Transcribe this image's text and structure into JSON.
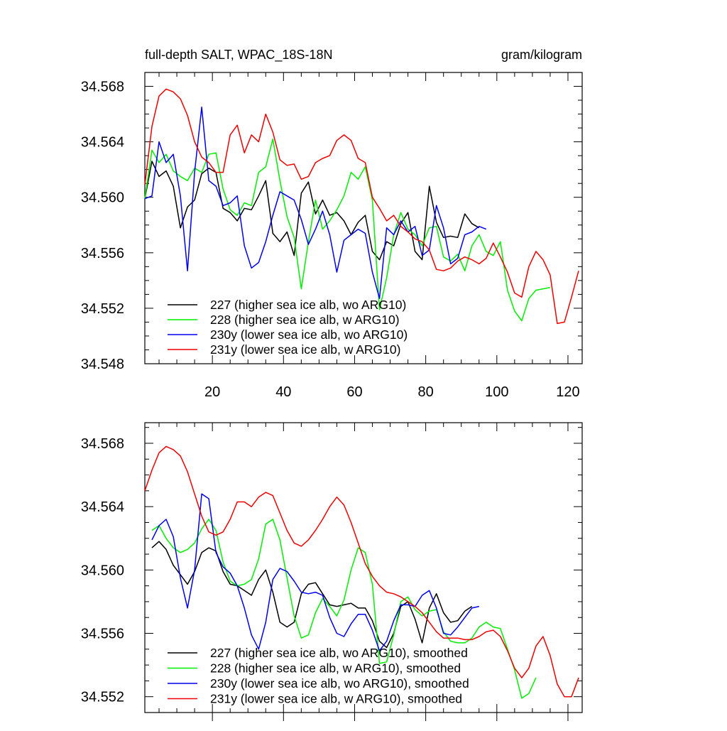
{
  "chart_data": [
    {
      "type": "line",
      "title": "full-depth SALT, WPAC_18S-18N",
      "units": "gram/kilogram",
      "xlim": [
        1,
        124
      ],
      "ylim": [
        34.548,
        34.569
      ],
      "x_ticks": [
        20,
        40,
        60,
        80,
        100,
        120
      ],
      "x_tick_labels": [
        "20",
        "40",
        "60",
        "80",
        "100",
        "120"
      ],
      "y_ticks": [
        34.548,
        34.552,
        34.556,
        34.56,
        34.564,
        34.568
      ],
      "y_tick_labels": [
        "34.548",
        "34.552",
        "34.556",
        "34.560",
        "34.564",
        "34.568"
      ],
      "legend_position": "lower-left",
      "series": [
        {
          "name": "227 (higher sea ice alb, wo ARG10)",
          "color": "#000000",
          "x": [
            1,
            3,
            5,
            7,
            9,
            11,
            13,
            15,
            17,
            19,
            21,
            23,
            25,
            27,
            29,
            31,
            33,
            35,
            37,
            39,
            41,
            43,
            45,
            47,
            49,
            51,
            53,
            55,
            57,
            59,
            61,
            63,
            65,
            67,
            69,
            71,
            73,
            75,
            77,
            79,
            81,
            83,
            85,
            87,
            89,
            91,
            93,
            95
          ],
          "y": [
            34.5599,
            34.5626,
            34.5615,
            34.5619,
            34.5608,
            34.5578,
            34.5593,
            34.5598,
            34.5617,
            34.5621,
            34.5618,
            34.5592,
            34.5589,
            34.5583,
            34.5592,
            34.5591,
            34.5601,
            34.5612,
            34.5574,
            34.5568,
            34.5575,
            34.5558,
            34.5603,
            34.5611,
            34.5588,
            34.5598,
            34.5587,
            34.5589,
            34.5583,
            34.5573,
            34.5582,
            34.5587,
            34.5561,
            34.5555,
            34.5568,
            34.5565,
            34.5581,
            34.5589,
            34.5561,
            34.5555,
            34.5608,
            34.5582,
            34.5571,
            34.5572,
            34.5571,
            34.5588,
            34.5581,
            34.5578
          ]
        },
        {
          "name": "228 (higher sea ice alb, w ARG10)",
          "color": "#00ee00",
          "x": [
            1,
            3,
            5,
            7,
            9,
            11,
            13,
            15,
            17,
            19,
            21,
            23,
            25,
            27,
            29,
            31,
            33,
            35,
            37,
            39,
            41,
            43,
            45,
            47,
            49,
            51,
            53,
            55,
            57,
            59,
            61,
            63,
            65,
            67,
            69,
            71,
            73,
            75,
            77,
            79,
            81,
            83,
            85,
            87,
            89,
            91,
            93,
            95,
            97,
            99,
            101,
            103,
            105,
            107,
            109,
            111,
            113,
            115
          ],
          "y": [
            34.5599,
            34.5634,
            34.5625,
            34.5631,
            34.5619,
            34.5615,
            34.5612,
            34.5621,
            34.5618,
            34.5631,
            34.5632,
            34.5606,
            34.5591,
            34.5587,
            34.5596,
            34.5594,
            34.5618,
            34.5622,
            34.5642,
            34.5612,
            34.5586,
            34.5571,
            34.5534,
            34.5568,
            34.5598,
            34.5577,
            34.5583,
            34.5591,
            34.5601,
            34.5618,
            34.5613,
            34.5622,
            34.5598,
            34.5519,
            34.5542,
            34.5573,
            34.5589,
            34.5577,
            34.5573,
            34.5565,
            34.5578,
            34.5579,
            34.5557,
            34.5554,
            34.5559,
            34.5547,
            34.5565,
            34.5573,
            34.5561,
            34.5558,
            34.5568,
            34.5533,
            34.5518,
            34.5511,
            34.5527,
            34.5533,
            34.5534,
            34.5535
          ]
        },
        {
          "name": "230y (lower sea ice alb, wo ARG10)",
          "color": "#0000ee",
          "x": [
            1,
            3,
            5,
            7,
            9,
            11,
            13,
            15,
            17,
            19,
            21,
            23,
            25,
            27,
            29,
            31,
            33,
            35,
            37,
            39,
            41,
            43,
            45,
            47,
            49,
            51,
            53,
            55,
            57,
            59,
            61,
            63,
            65,
            67,
            69,
            71,
            73,
            75,
            77,
            79,
            81,
            83,
            85,
            87,
            89,
            91,
            93,
            95,
            97
          ],
          "y": [
            34.5599,
            34.5601,
            34.564,
            34.5625,
            34.5631,
            34.5601,
            34.5547,
            34.5618,
            34.5665,
            34.5612,
            34.5608,
            34.5594,
            34.5596,
            34.5601,
            34.5565,
            34.5549,
            34.5553,
            34.5568,
            34.5587,
            34.5604,
            34.5601,
            34.5598,
            34.5584,
            34.5566,
            34.5577,
            34.559,
            34.5573,
            34.5546,
            34.5569,
            34.5573,
            34.5577,
            34.5574,
            34.5546,
            34.5527,
            34.5578,
            34.5573,
            34.5583,
            34.5575,
            34.5579,
            34.5558,
            34.5562,
            34.5594,
            34.5578,
            34.5552,
            34.5556,
            34.5573,
            34.5575,
            34.5579,
            34.5577
          ]
        },
        {
          "name": "231y (lower sea ice alb, w ARG10)",
          "color": "#ee0000",
          "x": [
            1,
            3,
            5,
            7,
            9,
            11,
            13,
            15,
            17,
            19,
            21,
            23,
            25,
            27,
            29,
            31,
            33,
            35,
            37,
            39,
            41,
            43,
            45,
            47,
            49,
            51,
            53,
            55,
            57,
            59,
            61,
            63,
            65,
            67,
            69,
            71,
            73,
            75,
            77,
            79,
            81,
            83,
            85,
            87,
            89,
            91,
            93,
            95,
            97,
            99,
            101,
            103,
            105,
            107,
            109,
            111,
            113,
            115,
            117,
            119,
            121,
            123
          ],
          "y": [
            34.5609,
            34.5651,
            34.5673,
            34.5678,
            34.5676,
            34.5671,
            34.5659,
            34.564,
            34.5629,
            34.5625,
            34.5618,
            34.5618,
            34.5645,
            34.5652,
            34.5632,
            34.5645,
            34.564,
            34.566,
            34.5647,
            34.5627,
            34.5623,
            34.5624,
            34.5613,
            34.5615,
            34.5625,
            34.5628,
            34.563,
            34.5641,
            34.5645,
            34.5641,
            34.5628,
            34.5625,
            34.56,
            34.5592,
            34.5583,
            34.5587,
            34.5579,
            34.5575,
            34.557,
            34.5568,
            34.5562,
            34.5548,
            34.5547,
            34.5549,
            34.5554,
            34.5557,
            34.5555,
            34.5552,
            34.5556,
            34.5567,
            34.5557,
            34.5546,
            34.5531,
            34.5528,
            34.555,
            34.5561,
            34.5555,
            34.5544,
            34.5509,
            34.551,
            34.5528,
            34.5547
          ]
        }
      ]
    },
    {
      "type": "line",
      "title": "",
      "xlim": [
        1,
        124
      ],
      "ylim": [
        34.551,
        34.5693
      ],
      "x_ticks": [
        20,
        40,
        60,
        80,
        100,
        120
      ],
      "y_ticks": [
        34.552,
        34.556,
        34.56,
        34.564,
        34.568
      ],
      "y_tick_labels": [
        "34.552",
        "34.556",
        "34.560",
        "34.564",
        "34.568"
      ],
      "legend_position": "lower-left",
      "series": [
        {
          "name": "227 (higher sea ice alb, wo ARG10), smoothed",
          "color": "#000000",
          "x": [
            3,
            5,
            7,
            9,
            11,
            13,
            15,
            17,
            19,
            21,
            23,
            25,
            27,
            29,
            31,
            33,
            35,
            37,
            39,
            41,
            43,
            45,
            47,
            49,
            51,
            53,
            55,
            57,
            59,
            61,
            63,
            65,
            67,
            69,
            71,
            73,
            75,
            77,
            79,
            81,
            83,
            85,
            87,
            89,
            91,
            93
          ],
          "y": [
            34.5614,
            34.5618,
            34.5613,
            34.5603,
            34.5597,
            34.5591,
            34.5599,
            34.5611,
            34.5614,
            34.5612,
            34.5599,
            34.5591,
            34.559,
            34.5587,
            34.5584,
            34.5594,
            34.56,
            34.5586,
            34.5567,
            34.5564,
            34.5567,
            34.5585,
            34.5591,
            34.5592,
            34.5585,
            34.5578,
            34.5577,
            34.5578,
            34.5579,
            34.5576,
            34.5576,
            34.5568,
            34.5555,
            34.5551,
            34.556,
            34.5577,
            34.558,
            34.5569,
            34.5554,
            34.5576,
            34.5585,
            34.5573,
            34.5567,
            34.5568,
            34.5574,
            34.5577
          ]
        },
        {
          "name": "228 (higher sea ice alb, w ARG10), smoothed",
          "color": "#00ee00",
          "x": [
            3,
            5,
            7,
            9,
            11,
            13,
            15,
            17,
            19,
            21,
            23,
            25,
            27,
            29,
            31,
            33,
            35,
            37,
            39,
            41,
            43,
            45,
            47,
            49,
            51,
            53,
            55,
            57,
            59,
            61,
            63,
            65,
            67,
            69,
            71,
            73,
            75,
            77,
            79,
            81,
            83,
            85,
            87,
            89,
            91,
            93,
            95,
            97,
            99,
            101,
            103,
            105,
            107,
            109,
            111
          ],
          "y": [
            34.5625,
            34.5628,
            34.562,
            34.5614,
            34.5611,
            34.5613,
            34.5617,
            34.5626,
            34.5632,
            34.5625,
            34.5605,
            34.5593,
            34.559,
            34.5591,
            34.5594,
            34.5607,
            34.5629,
            34.5632,
            34.5619,
            34.5595,
            34.5571,
            34.5557,
            34.5559,
            34.5573,
            34.5582,
            34.5577,
            34.5571,
            34.5581,
            34.56,
            34.5614,
            34.5611,
            34.5591,
            34.5541,
            34.5542,
            34.5559,
            34.558,
            34.5583,
            34.5575,
            34.5571,
            34.5574,
            34.5575,
            34.5561,
            34.5555,
            34.5554,
            34.5554,
            34.5557,
            34.5564,
            34.5567,
            34.5564,
            34.5563,
            34.555,
            34.5537,
            34.5519,
            34.5522,
            34.5532
          ]
        },
        {
          "name": "230y (lower sea ice alb, wo ARG10), smoothed",
          "color": "#0000ee",
          "x": [
            3,
            5,
            7,
            9,
            11,
            13,
            15,
            17,
            19,
            21,
            23,
            25,
            27,
            29,
            31,
            33,
            35,
            37,
            39,
            41,
            43,
            45,
            47,
            49,
            51,
            53,
            55,
            57,
            59,
            61,
            63,
            65,
            67,
            69,
            71,
            73,
            75,
            77,
            79,
            81,
            83,
            85,
            87,
            89,
            91,
            93,
            95
          ],
          "y": [
            34.5619,
            34.5628,
            34.5632,
            34.5621,
            34.5595,
            34.5576,
            34.56,
            34.5648,
            34.5645,
            34.5611,
            34.5602,
            34.5598,
            34.559,
            34.5576,
            34.5559,
            34.555,
            34.5567,
            34.5594,
            34.5601,
            34.5599,
            34.5593,
            34.5586,
            34.5585,
            34.5586,
            34.5584,
            34.557,
            34.556,
            34.5558,
            34.5566,
            34.5572,
            34.5572,
            34.5562,
            34.5549,
            34.5555,
            34.5568,
            34.5578,
            34.5578,
            34.5577,
            34.5584,
            34.5587,
            34.5576,
            34.556,
            34.5559,
            34.5564,
            34.557,
            34.5576,
            34.5577
          ]
        },
        {
          "name": "231y (lower sea ice alb, w ARG10), smoothed",
          "color": "#ee0000",
          "x": [
            1,
            3,
            5,
            7,
            9,
            11,
            13,
            15,
            17,
            19,
            21,
            23,
            25,
            27,
            29,
            31,
            33,
            35,
            37,
            39,
            41,
            43,
            45,
            47,
            49,
            51,
            53,
            55,
            57,
            59,
            61,
            63,
            65,
            67,
            69,
            71,
            73,
            75,
            77,
            79,
            81,
            83,
            85,
            87,
            89,
            91,
            93,
            95,
            97,
            99,
            101,
            103,
            105,
            107,
            109,
            111,
            113,
            115,
            117,
            119,
            121,
            123
          ],
          "y": [
            34.565,
            34.5663,
            34.5674,
            34.5678,
            34.5676,
            34.5672,
            34.5662,
            34.5648,
            34.5634,
            34.5624,
            34.5622,
            34.5624,
            34.5632,
            34.5643,
            34.5643,
            34.564,
            34.5646,
            34.5649,
            34.5647,
            34.5636,
            34.5625,
            34.5617,
            34.5615,
            34.5619,
            34.5625,
            34.5632,
            34.564,
            34.5646,
            34.5641,
            34.563,
            34.5617,
            34.5604,
            34.5596,
            34.559,
            34.5586,
            34.5585,
            34.5583,
            34.558,
            34.5577,
            34.5573,
            34.5567,
            34.5561,
            34.5557,
            34.5557,
            34.5557,
            34.5556,
            34.5556,
            34.5558,
            34.5561,
            34.5562,
            34.5558,
            34.5549,
            34.5538,
            34.5532,
            34.5538,
            34.5552,
            34.5558,
            34.5546,
            34.5528,
            34.552,
            34.552,
            34.5532
          ]
        }
      ]
    }
  ]
}
